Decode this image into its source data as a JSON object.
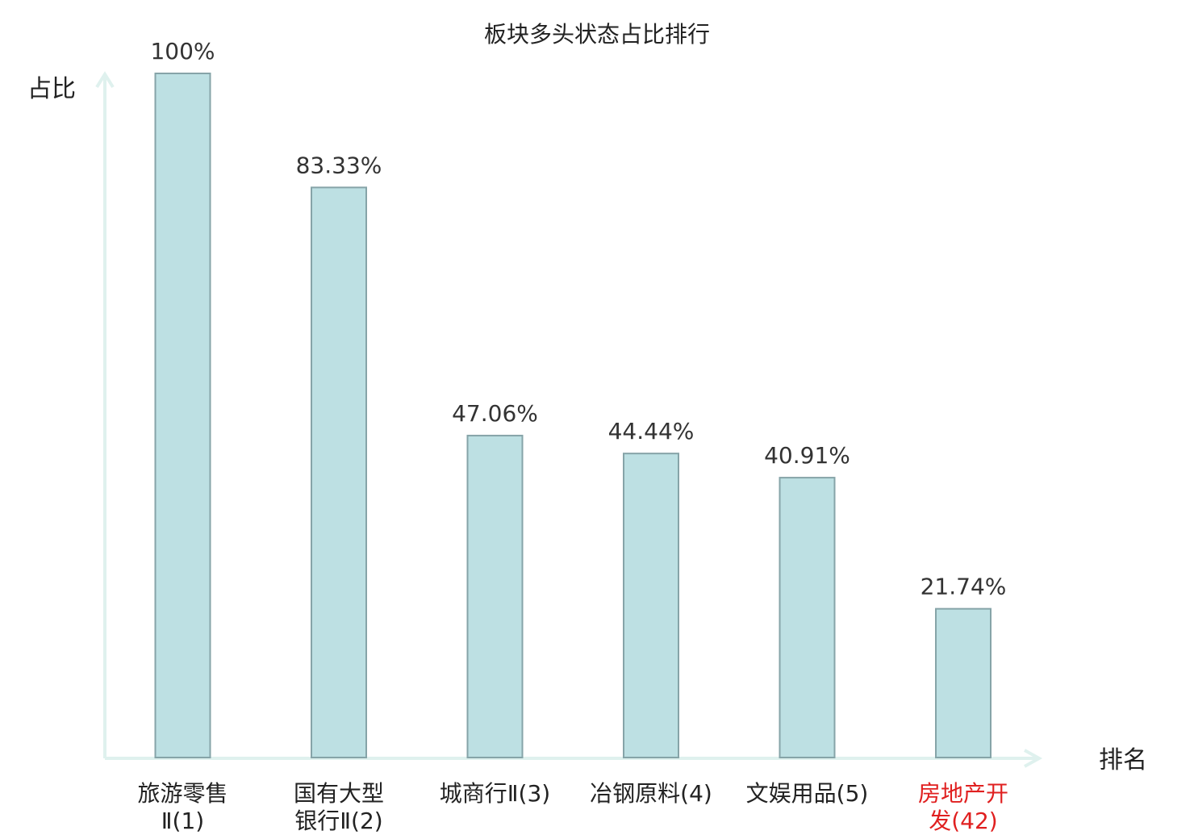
{
  "chart_data": {
    "type": "bar",
    "title": "板块多头状态占比排行",
    "ylabel": "占比",
    "xlabel": "排名",
    "ylim": [
      0,
      100
    ],
    "grid": false,
    "legend": "none",
    "categories": [
      [
        "旅游零售",
        "Ⅱ(1)"
      ],
      [
        "国有大型",
        "银行Ⅱ(2)"
      ],
      [
        "城商行Ⅱ(3)"
      ],
      [
        "冶钢原料(4)"
      ],
      [
        "文娱用品(5)"
      ],
      [
        "房地产开",
        "发(42)"
      ]
    ],
    "values": [
      100,
      83.33,
      47.06,
      44.44,
      40.91,
      21.74
    ],
    "value_labels": [
      "100%",
      "83.33%",
      "47.06%",
      "44.44%",
      "40.91%",
      "21.74%"
    ],
    "highlight_index": 5,
    "colors": {
      "bar_fill": "#bde0e3",
      "bar_stroke": "#86a4a8",
      "axis": "#dff1ee",
      "highlight_text": "#e02020",
      "text": "#222222"
    }
  }
}
